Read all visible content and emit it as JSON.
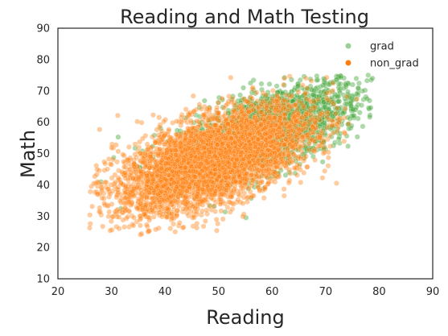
{
  "chart_data": {
    "type": "scatter",
    "title": "Reading and Math Testing",
    "xlabel": "Reading",
    "ylabel": "Math",
    "xlim": [
      20,
      90
    ],
    "ylim": [
      10,
      90
    ],
    "xticks": [
      20,
      30,
      40,
      50,
      60,
      70,
      80,
      90
    ],
    "yticks": [
      10,
      20,
      30,
      40,
      50,
      60,
      70,
      80,
      90
    ],
    "grid": false,
    "legend_position": "top-right",
    "series": [
      {
        "name": "grad",
        "color": "#4aa83f",
        "alpha": 0.45,
        "count": 1800,
        "x_mean": 60,
        "x_sd": 8.5,
        "y_mean": 58,
        "y_sd": 8,
        "correlation": 0.6,
        "x_range": [
          28,
          79
        ],
        "y_range": [
          23,
          75
        ]
      },
      {
        "name": "non_grad",
        "color": "#ff7f0e",
        "alpha": 0.4,
        "count": 4500,
        "x_mean": 49,
        "x_sd": 9,
        "y_mean": 48,
        "y_sd": 8.5,
        "correlation": 0.6,
        "x_range": [
          25,
          77
        ],
        "y_range": [
          24,
          75
        ]
      }
    ]
  }
}
